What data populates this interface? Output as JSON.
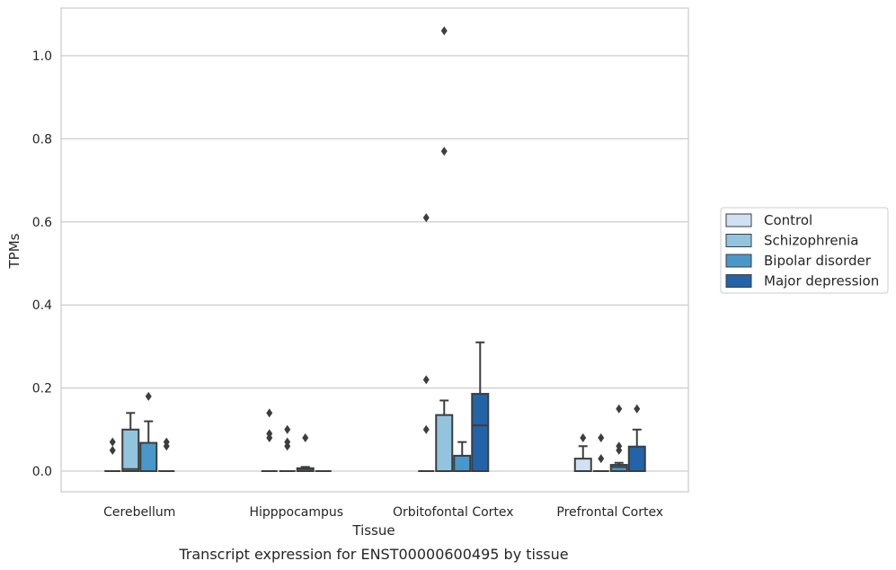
{
  "chart_data": {
    "type": "box",
    "xlabel": "Tissue",
    "ylabel": "TPMs",
    "caption": "Transcript expression for ENST00000600495 by tissue",
    "categories": [
      "Cerebellum",
      "Hipppocampus",
      "Orbitofontal Cortex",
      "Prefrontal Cortex"
    ],
    "ylim": [
      -0.05,
      1.11
    ],
    "yticks": [
      0.0,
      0.2,
      0.4,
      0.6,
      0.8,
      1.0
    ],
    "ytick_labels": [
      "0.0",
      "0.2",
      "0.4",
      "0.6",
      "0.8",
      "1.0"
    ],
    "grid": true,
    "legend_position": "right",
    "series": [
      {
        "name": "Control",
        "color": "#cfe1f2",
        "boxes": [
          {
            "q1": 0.0,
            "median": 0.0,
            "q3": 0.0,
            "whislo": 0.0,
            "whishi": 0.0,
            "fliers": [
              0.05,
              0.07
            ]
          },
          {
            "q1": 0.0,
            "median": 0.0,
            "q3": 0.0,
            "whislo": 0.0,
            "whishi": 0.0,
            "fliers": [
              0.08,
              0.09,
              0.14
            ]
          },
          {
            "q1": 0.0,
            "median": 0.0,
            "q3": 0.0,
            "whislo": 0.0,
            "whishi": 0.0,
            "fliers": [
              0.1,
              0.22,
              0.61
            ]
          },
          {
            "q1": 0.0,
            "median": 0.0,
            "q3": 0.03,
            "whislo": 0.0,
            "whishi": 0.06,
            "fliers": [
              0.08
            ]
          }
        ]
      },
      {
        "name": "Schizophrenia",
        "color": "#93c4de",
        "boxes": [
          {
            "q1": 0.0,
            "median": 0.005,
            "q3": 0.1,
            "whislo": 0.0,
            "whishi": 0.14,
            "fliers": []
          },
          {
            "q1": 0.0,
            "median": 0.0,
            "q3": 0.0,
            "whislo": 0.0,
            "whishi": 0.0,
            "fliers": [
              0.06,
              0.07,
              0.1
            ]
          },
          {
            "q1": 0.0,
            "median": 0.0,
            "q3": 0.135,
            "whislo": 0.0,
            "whishi": 0.17,
            "fliers": [
              0.77,
              1.06
            ]
          },
          {
            "q1": 0.0,
            "median": 0.0,
            "q3": 0.0,
            "whislo": 0.0,
            "whishi": 0.0,
            "fliers": [
              0.03,
              0.08
            ]
          }
        ]
      },
      {
        "name": "Bipolar disorder",
        "color": "#4a98c9",
        "boxes": [
          {
            "q1": 0.0,
            "median": 0.0,
            "q3": 0.068,
            "whislo": 0.0,
            "whishi": 0.12,
            "fliers": [
              0.18
            ]
          },
          {
            "q1": 0.0,
            "median": 0.005,
            "q3": 0.007,
            "whislo": 0.0,
            "whishi": 0.01,
            "fliers": [
              0.08
            ]
          },
          {
            "q1": 0.0,
            "median": 0.0,
            "q3": 0.037,
            "whislo": 0.0,
            "whishi": 0.07,
            "fliers": []
          },
          {
            "q1": 0.0,
            "median": 0.01,
            "q3": 0.015,
            "whislo": 0.0,
            "whishi": 0.02,
            "fliers": [
              0.05,
              0.06,
              0.15
            ]
          }
        ]
      },
      {
        "name": "Major depression",
        "color": "#2363a8",
        "boxes": [
          {
            "q1": 0.0,
            "median": 0.0,
            "q3": 0.0,
            "whislo": 0.0,
            "whishi": 0.0,
            "fliers": [
              0.06,
              0.07
            ]
          },
          {
            "q1": 0.0,
            "median": 0.0,
            "q3": 0.0,
            "whislo": 0.0,
            "whishi": 0.0,
            "fliers": []
          },
          {
            "q1": 0.0,
            "median": 0.11,
            "q3": 0.186,
            "whislo": 0.0,
            "whishi": 0.31,
            "fliers": []
          },
          {
            "q1": 0.0,
            "median": 0.0,
            "q3": 0.059,
            "whislo": 0.0,
            "whishi": 0.1,
            "fliers": [
              0.15
            ]
          }
        ]
      }
    ]
  }
}
